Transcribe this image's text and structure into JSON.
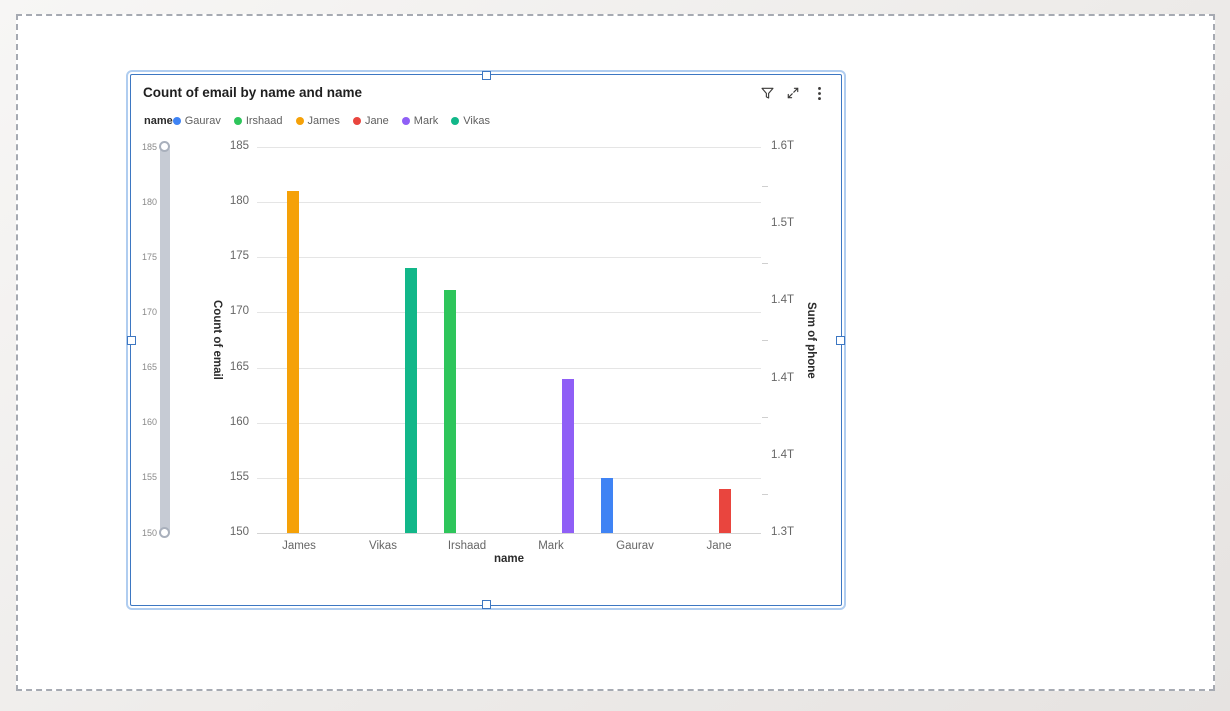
{
  "visual": {
    "toolbar_icons": [
      "filter",
      "focus-mode",
      "more-options"
    ]
  },
  "chart_data": {
    "type": "bar",
    "title": "Count of email by name and name",
    "xlabel": "name",
    "ylabel": "Count of email",
    "y2label": "Sum of phone",
    "categories": [
      "James",
      "Vikas",
      "Irshaad",
      "Mark",
      "Gaurav",
      "Jane"
    ],
    "values": [
      181,
      174,
      172,
      164,
      155,
      154
    ],
    "bar_colors": {
      "James": "#F5A108",
      "Vikas": "#12B789",
      "Irshaad": "#2EC55B",
      "Mark": "#8F5FF6",
      "Gaurav": "#3F83F4",
      "Jane": "#E9453E"
    },
    "legend": {
      "title": "name",
      "position": "top",
      "entries": [
        {
          "label": "Gaurav",
          "color": "#3F83F4"
        },
        {
          "label": "Irshaad",
          "color": "#2EC55B"
        },
        {
          "label": "James",
          "color": "#F5A108"
        },
        {
          "label": "Jane",
          "color": "#E9453E"
        },
        {
          "label": "Mark",
          "color": "#8F5FF6"
        },
        {
          "label": "Vikas",
          "color": "#12B789"
        }
      ]
    },
    "y_axis": {
      "min": 150,
      "max": 185,
      "tick_step": 5,
      "tick_labels": [
        "185",
        "180",
        "175",
        "170",
        "165",
        "160",
        "155",
        "150"
      ]
    },
    "y2_axis": {
      "tick_labels": [
        "1.6T",
        "1.5T",
        "1.4T",
        "1.4T",
        "1.4T",
        "1.3T"
      ]
    },
    "zoom_slider": {
      "tick_labels": [
        "185",
        "180",
        "175",
        "170",
        "165",
        "160",
        "155",
        "150"
      ],
      "range_top": "185",
      "range_bottom": "150"
    },
    "grid": true
  }
}
